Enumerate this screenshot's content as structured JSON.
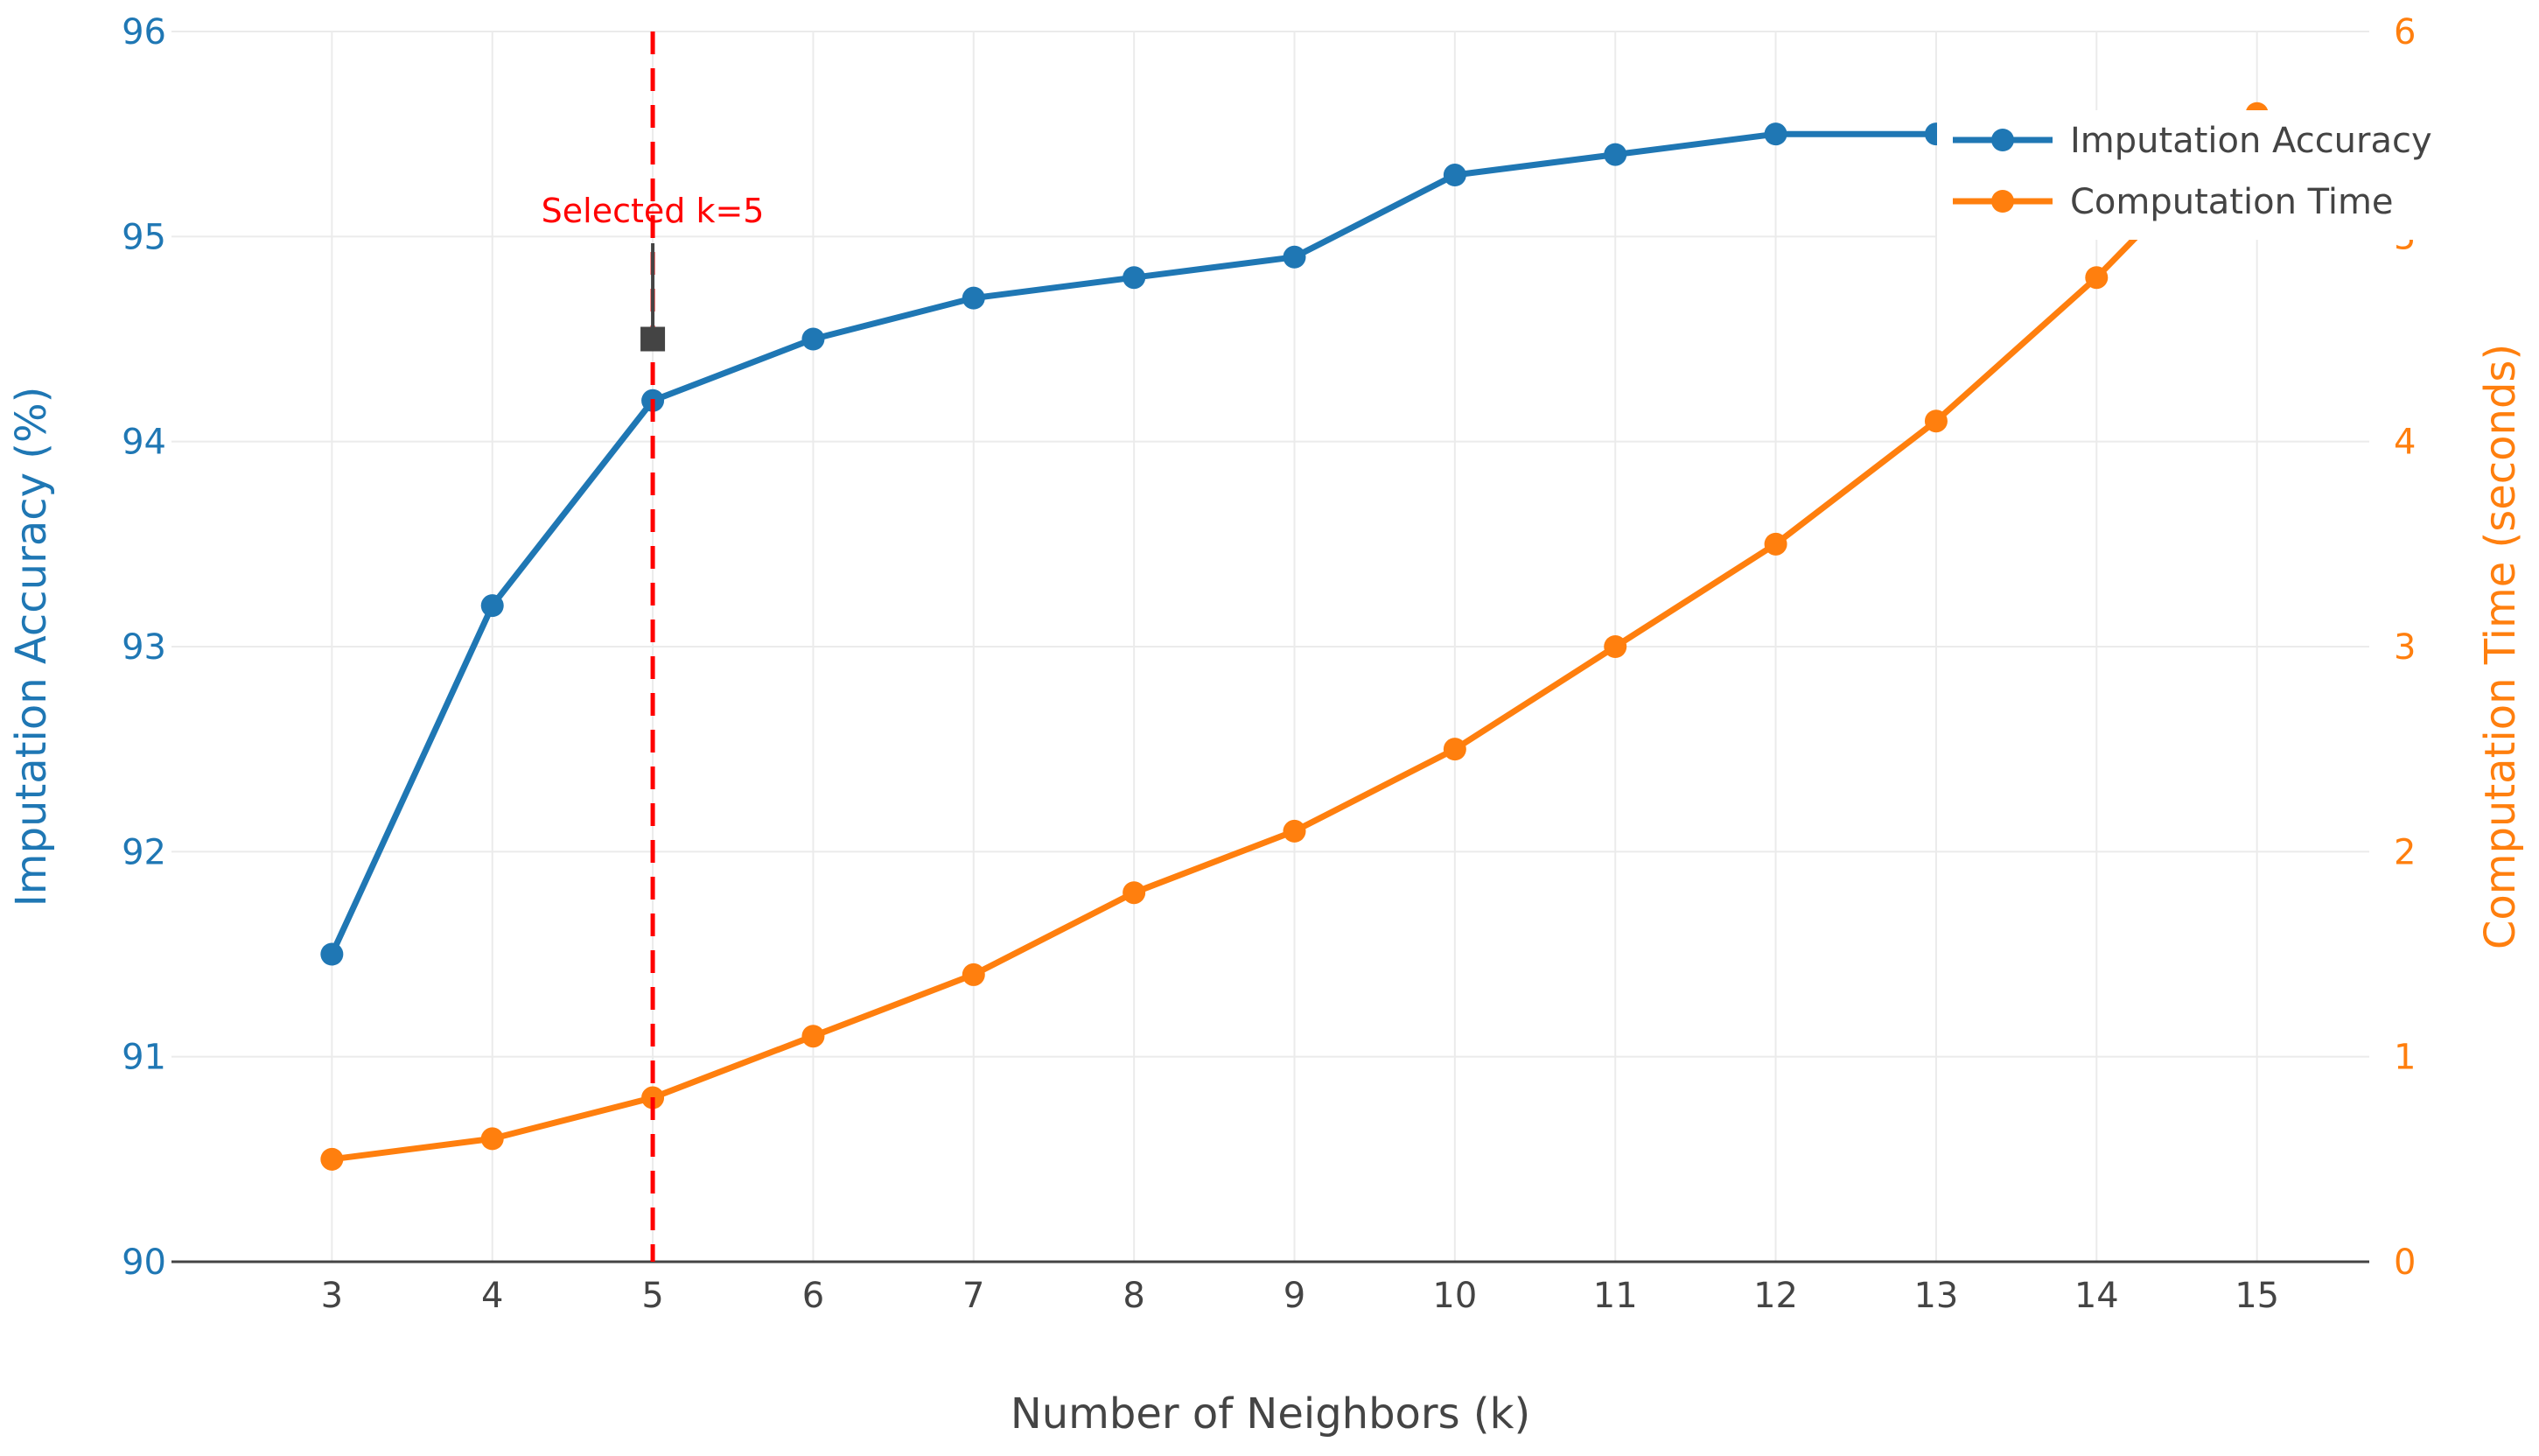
{
  "chart_data": {
    "type": "line",
    "title": "",
    "xlabel": "Number of Neighbors (k)",
    "ylabel": "Imputation Accuracy (%)",
    "y2label": "Computation Time (seconds)",
    "xlim": [
      2,
      15.7
    ],
    "ylim": [
      90,
      96
    ],
    "y2lim": [
      0,
      6
    ],
    "x_ticks": [
      3,
      4,
      5,
      6,
      7,
      8,
      9,
      10,
      11,
      12,
      13,
      14,
      15
    ],
    "y_ticks": [
      90,
      91,
      92,
      93,
      94,
      95,
      96
    ],
    "y2_ticks": [
      0,
      1,
      2,
      3,
      4,
      5,
      6
    ],
    "grid": true,
    "legend": "top-right",
    "colors": {
      "accuracy": "#1f77b4",
      "time": "#ff7f0e",
      "selected": "#ff0000",
      "annotation": "#444444"
    },
    "series": [
      {
        "name": "Imputation Accuracy",
        "axis": "y",
        "x": [
          3,
          4,
          5,
          6,
          7,
          8,
          9,
          10,
          11,
          12,
          13
        ],
        "values": [
          91.5,
          93.2,
          94.2,
          94.5,
          94.7,
          94.8,
          94.9,
          95.3,
          95.4,
          95.5,
          95.5
        ]
      },
      {
        "name": "Computation Time",
        "axis": "y2",
        "x": [
          3,
          4,
          5,
          6,
          7,
          8,
          9,
          10,
          11,
          12,
          13,
          14,
          15
        ],
        "values": [
          0.5,
          0.6,
          0.8,
          1.1,
          1.4,
          1.8,
          2.1,
          2.5,
          3.0,
          3.5,
          4.1,
          4.8,
          5.6
        ]
      }
    ],
    "annotations": [
      {
        "text": "Selected k=5",
        "x": 5,
        "y": 94.5,
        "type": "vline"
      }
    ]
  }
}
